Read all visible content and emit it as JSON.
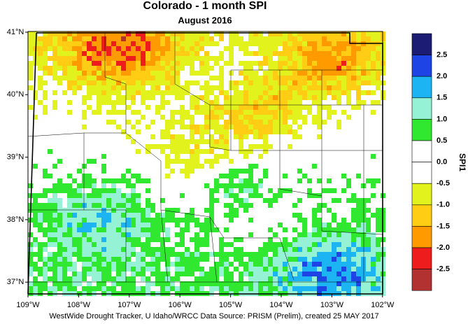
{
  "title": "Colorado - 1 month SPI",
  "subtitle": "August 2016",
  "footer": "WestWide Drought Tracker, U Idaho/WRCC Data Source: PRISM (Prelim), created 25 MAY 2017",
  "colorbar": {
    "label": "SPI1",
    "ticks": [
      "2.5",
      "2.0",
      "1.5",
      "1.0",
      "0.5",
      "0.0",
      "-0.5",
      "-1.0",
      "-1.5",
      "-2.0",
      "-2.5"
    ],
    "colors": [
      "#1c1c74",
      "#1f44e6",
      "#1cb4f2",
      "#96f2d4",
      "#30e830",
      "#ffffff",
      "#ffffff",
      "#e2f21c",
      "#ffce14",
      "#ff9a00",
      "#ee1c1c",
      "#b23232"
    ]
  },
  "lat_labels": [
    "41°N",
    "40°N",
    "39°N",
    "38°N",
    "37°N"
  ],
  "lon_labels": [
    "109°W",
    "108°W",
    "107°W",
    "106°W",
    "105°W",
    "104°W",
    "103°W",
    "102°W"
  ]
}
